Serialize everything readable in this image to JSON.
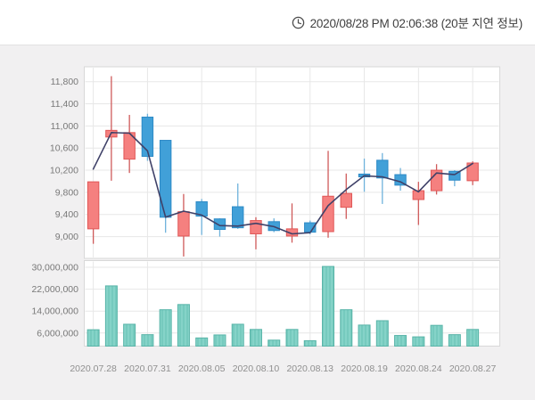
{
  "header": {
    "timestamp_label": "2020/08/28 PM 02:06:38 (20분 지연 정보)"
  },
  "chart_data": {
    "type": "candlestick_with_volume",
    "title": "",
    "xlabel": "",
    "ylabel": "",
    "legend": "none",
    "grid": true,
    "price_axis": {
      "tick_labels": [
        "11,800",
        "11,400",
        "11,000",
        "10,600",
        "10,200",
        "9,800",
        "9,400",
        "9,000"
      ],
      "tick_values": [
        11800,
        11400,
        11000,
        10600,
        10200,
        9800,
        9400,
        9000
      ],
      "range": [
        8600,
        12070
      ]
    },
    "volume_axis": {
      "tick_labels": [
        "30,000,000",
        "22,000,000",
        "14,000,000",
        "6,000,000"
      ],
      "tick_values": [
        30000000,
        22000000,
        14000000,
        6000000
      ],
      "range": [
        0,
        32400000
      ]
    },
    "x_tick_labels": [
      "2020.07.28",
      "2020.07.31",
      "2020.08.05",
      "2020.08.10",
      "2020.08.13",
      "2020.08.19",
      "2020.08.24",
      "2020.08.27"
    ],
    "x_tick_indices": [
      0,
      3,
      6,
      9,
      12,
      15,
      18,
      21
    ],
    "candles": [
      {
        "date": "2020.07.28",
        "open": 9140,
        "high": 9990,
        "low": 8870,
        "close": 9990,
        "volume": 7200000,
        "ma": 10220
      },
      {
        "date": "2020.07.29",
        "open": 10800,
        "high": 11900,
        "low": 10010,
        "close": 10920,
        "volume": 23200000,
        "ma": 10880
      },
      {
        "date": "2020.07.30",
        "open": 10400,
        "high": 11200,
        "low": 10150,
        "close": 10880,
        "volume": 9200000,
        "ma": 10870
      },
      {
        "date": "2020.07.31",
        "open": 11160,
        "high": 11220,
        "low": 10370,
        "close": 10450,
        "volume": 5400000,
        "ma": 10550
      },
      {
        "date": "2020.08.03",
        "open": 10740,
        "high": 10740,
        "low": 9070,
        "close": 9350,
        "volume": 14500000,
        "ma": 9350
      },
      {
        "date": "2020.08.04",
        "open": 9010,
        "high": 9770,
        "low": 8640,
        "close": 9450,
        "volume": 16400000,
        "ma": 9460
      },
      {
        "date": "2020.08.05",
        "open": 9630,
        "high": 9680,
        "low": 9030,
        "close": 9370,
        "volume": 4200000,
        "ma": 9390
      },
      {
        "date": "2020.08.06",
        "open": 9320,
        "high": 9330,
        "low": 9000,
        "close": 9130,
        "volume": 5300000,
        "ma": 9200
      },
      {
        "date": "2020.08.07",
        "open": 9540,
        "high": 9960,
        "low": 9140,
        "close": 9160,
        "volume": 9200000,
        "ma": 9190
      },
      {
        "date": "2020.08.10",
        "open": 9050,
        "high": 9350,
        "low": 8770,
        "close": 9290,
        "volume": 7300000,
        "ma": 9240
      },
      {
        "date": "2020.08.11",
        "open": 9270,
        "high": 9330,
        "low": 9080,
        "close": 9110,
        "volume": 3400000,
        "ma": 9180
      },
      {
        "date": "2020.08.12",
        "open": 9010,
        "high": 9600,
        "low": 8890,
        "close": 9140,
        "volume": 7300000,
        "ma": 9050
      },
      {
        "date": "2020.08.13",
        "open": 9250,
        "high": 9290,
        "low": 9040,
        "close": 9080,
        "volume": 3200000,
        "ma": 9070
      },
      {
        "date": "2020.08.14",
        "open": 9090,
        "high": 10550,
        "low": 8980,
        "close": 9730,
        "volume": 30300000,
        "ma": 9560
      },
      {
        "date": "2020.08.18",
        "open": 9530,
        "high": 10140,
        "low": 9320,
        "close": 9780,
        "volume": 14500000,
        "ma": 9850
      },
      {
        "date": "2020.08.19",
        "open": 10130,
        "high": 10410,
        "low": 9810,
        "close": 10080,
        "volume": 8900000,
        "ma": 10100
      },
      {
        "date": "2020.08.20",
        "open": 10380,
        "high": 10510,
        "low": 9590,
        "close": 10060,
        "volume": 10500000,
        "ma": 10080
      },
      {
        "date": "2020.08.21",
        "open": 10120,
        "high": 10240,
        "low": 9830,
        "close": 9930,
        "volume": 5100000,
        "ma": 9990
      },
      {
        "date": "2020.08.24",
        "open": 9670,
        "high": 9990,
        "low": 9210,
        "close": 9830,
        "volume": 4600000,
        "ma": 9810
      },
      {
        "date": "2020.08.25",
        "open": 9830,
        "high": 10310,
        "low": 9760,
        "close": 10200,
        "volume": 8800000,
        "ma": 10150
      },
      {
        "date": "2020.08.26",
        "open": 10180,
        "high": 10200,
        "low": 9910,
        "close": 10020,
        "volume": 5400000,
        "ma": 10120
      },
      {
        "date": "2020.08.27",
        "open": 10010,
        "high": 10360,
        "low": 9930,
        "close": 10330,
        "volume": 7300000,
        "ma": 10320
      }
    ],
    "colors": {
      "up_fill": "#f5807f",
      "up_border": "#e05656",
      "up_wick": "#cf5a5a",
      "down_fill": "#41a0d8",
      "down_border": "#2d8ac6",
      "down_wick": "#6fb3dc",
      "ma_line": "#3f4168",
      "volume_fill": "#85d3c8",
      "volume_stripe": "#6cc4b8",
      "volume_border": "#58b4a8",
      "grid": "#e7e7e7",
      "plot_border": "#d8d8d8",
      "plot_bg": "#ffffff",
      "card_bg": "#f1f0f1"
    }
  }
}
